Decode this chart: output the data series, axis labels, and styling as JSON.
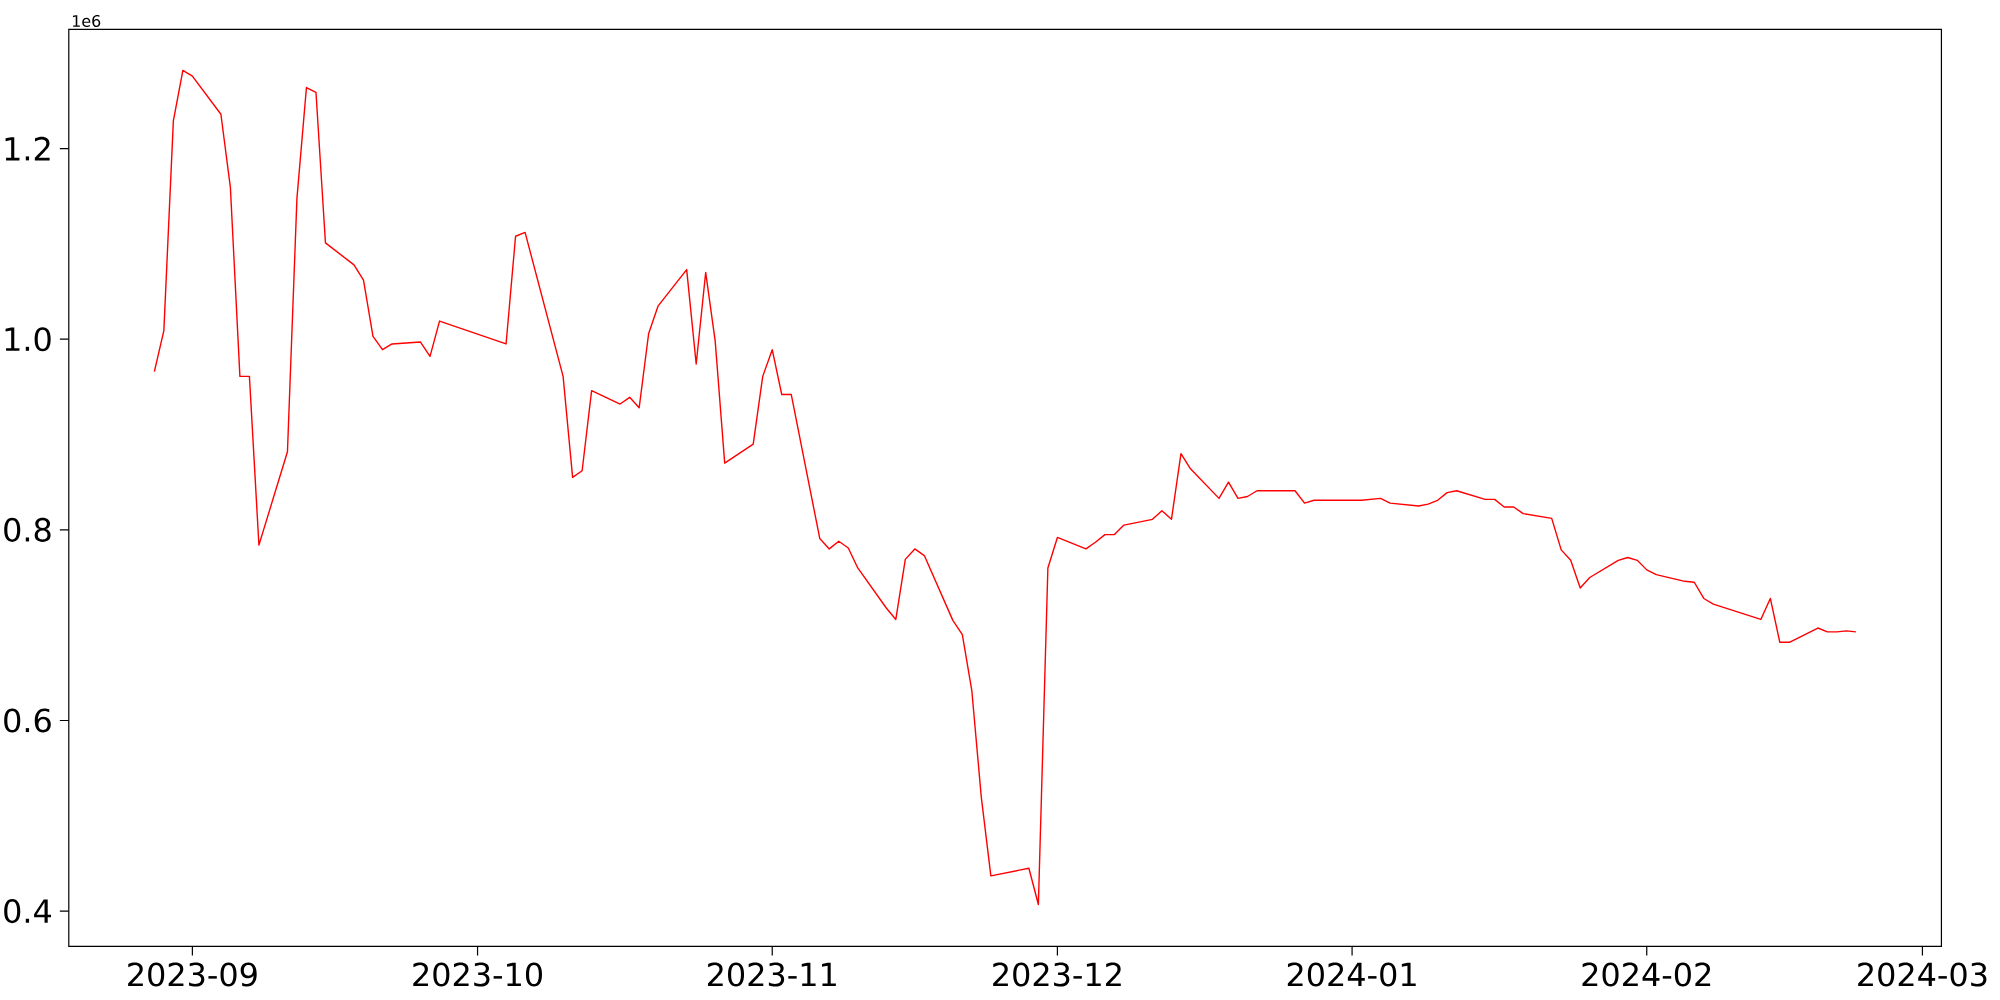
{
  "chart_data": {
    "type": "line",
    "color": "#ff0000",
    "x": [
      "2023-08-28",
      "2023-08-29",
      "2023-08-30",
      "2023-08-31",
      "2023-09-01",
      "2023-09-04",
      "2023-09-05",
      "2023-09-06",
      "2023-09-07",
      "2023-09-08",
      "2023-09-11",
      "2023-09-12",
      "2023-09-13",
      "2023-09-14",
      "2023-09-15",
      "2023-09-18",
      "2023-09-19",
      "2023-09-20",
      "2023-09-21",
      "2023-09-22",
      "2023-09-25",
      "2023-09-26",
      "2023-09-27",
      "2023-10-04",
      "2023-10-05",
      "2023-10-06",
      "2023-10-10",
      "2023-10-11",
      "2023-10-12",
      "2023-10-13",
      "2023-10-16",
      "2023-10-17",
      "2023-10-18",
      "2023-10-19",
      "2023-10-20",
      "2023-10-23",
      "2023-10-24",
      "2023-10-25",
      "2023-10-26",
      "2023-10-27",
      "2023-10-30",
      "2023-10-31",
      "2023-11-01",
      "2023-11-02",
      "2023-11-03",
      "2023-11-06",
      "2023-11-07",
      "2023-11-08",
      "2023-11-09",
      "2023-11-10",
      "2023-11-13",
      "2023-11-14",
      "2023-11-15",
      "2023-11-16",
      "2023-11-17",
      "2023-11-20",
      "2023-11-21",
      "2023-11-22",
      "2023-11-23",
      "2023-11-24",
      "2023-11-27",
      "2023-11-28",
      "2023-11-29",
      "2023-11-30",
      "2023-12-01",
      "2023-12-04",
      "2023-12-05",
      "2023-12-06",
      "2023-12-07",
      "2023-12-08",
      "2023-12-11",
      "2023-12-12",
      "2023-12-13",
      "2023-12-14",
      "2023-12-15",
      "2023-12-18",
      "2023-12-19",
      "2023-12-20",
      "2023-12-21",
      "2023-12-22",
      "2023-12-26",
      "2023-12-27",
      "2023-12-28",
      "2023-12-29",
      "2024-01-02",
      "2024-01-04",
      "2024-01-05",
      "2024-01-08",
      "2024-01-09",
      "2024-01-10",
      "2024-01-11",
      "2024-01-12",
      "2024-01-15",
      "2024-01-16",
      "2024-01-17",
      "2024-01-18",
      "2024-01-19",
      "2024-01-22",
      "2024-01-23",
      "2024-01-24",
      "2024-01-25",
      "2024-01-26",
      "2024-01-29",
      "2024-01-30",
      "2024-01-31",
      "2024-02-01",
      "2024-02-02",
      "2024-02-05",
      "2024-02-06",
      "2024-02-07",
      "2024-02-08",
      "2024-02-13",
      "2024-02-14",
      "2024-02-15",
      "2024-02-16",
      "2024-02-19",
      "2024-02-20",
      "2024-02-21",
      "2024-02-22",
      "2024-02-23"
    ],
    "values": [
      0.966,
      1.009,
      1.229,
      1.282,
      1.276,
      1.236,
      1.159,
      0.961,
      0.961,
      0.784,
      0.882,
      1.148,
      1.264,
      1.259,
      1.101,
      1.078,
      1.062,
      1.003,
      0.989,
      0.995,
      0.997,
      0.982,
      1.019,
      0.995,
      1.108,
      1.112,
      0.961,
      0.855,
      0.862,
      0.946,
      0.932,
      0.939,
      0.928,
      1.006,
      1.035,
      1.073,
      0.974,
      1.07,
      0.998,
      0.87,
      0.89,
      0.961,
      0.989,
      0.942,
      0.942,
      0.791,
      0.78,
      0.788,
      0.781,
      0.76,
      0.718,
      0.706,
      0.769,
      0.78,
      0.773,
      0.705,
      0.69,
      0.631,
      0.519,
      0.437,
      0.443,
      0.445,
      0.407,
      0.76,
      0.792,
      0.78,
      0.787,
      0.795,
      0.795,
      0.805,
      0.811,
      0.82,
      0.811,
      0.88,
      0.864,
      0.833,
      0.85,
      0.833,
      0.835,
      0.841,
      0.841,
      0.828,
      0.831,
      0.831,
      0.831,
      0.833,
      0.828,
      0.825,
      0.827,
      0.831,
      0.839,
      0.841,
      0.832,
      0.832,
      0.824,
      0.824,
      0.817,
      0.812,
      0.779,
      0.768,
      0.739,
      0.75,
      0.768,
      0.771,
      0.768,
      0.758,
      0.753,
      0.746,
      0.745,
      0.728,
      0.722,
      0.706,
      0.728,
      0.682,
      0.682,
      0.697,
      0.693,
      0.693,
      0.694,
      0.693
    ],
    "xlim": [
      "2023-08-19",
      "2024-03-03"
    ],
    "xticks": [
      "2023-09",
      "2023-10",
      "2023-11",
      "2023-12",
      "2024-01",
      "2024-02",
      "2024-03"
    ],
    "ylim": [
      0.363,
      1.325
    ],
    "yticks": [
      0.4,
      0.6,
      0.8,
      {
        "value": 1,
        "label": "1.0"
      },
      1.2
    ],
    "annotations": [
      "1e6"
    ]
  }
}
